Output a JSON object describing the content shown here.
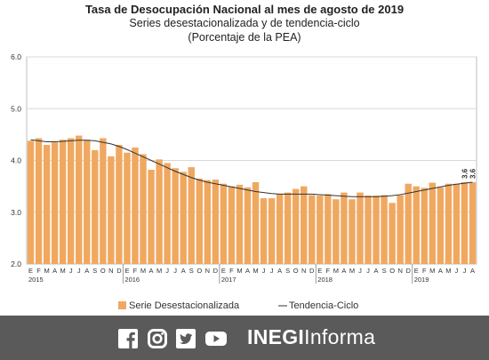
{
  "chart_data": {
    "type": "bar",
    "title": "Tasa de Desocupación Nacional al mes de agosto de 2019",
    "subtitle": "Series desestacionalizada y de tendencia-ciclo",
    "subtitle2": "(Porcentaje de la PEA)",
    "ylim": [
      2.0,
      6.0
    ],
    "yticks": [
      "2.0",
      "3.0",
      "4.0",
      "5.0",
      "6.0"
    ],
    "month_labels": [
      "E",
      "F",
      "M",
      "A",
      "M",
      "J",
      "J",
      "A",
      "S",
      "O",
      "N",
      "D",
      "E",
      "F",
      "M",
      "A",
      "M",
      "J",
      "J",
      "A",
      "S",
      "O",
      "N",
      "D",
      "E",
      "F",
      "M",
      "A",
      "M",
      "J",
      "J",
      "A",
      "S",
      "O",
      "N",
      "D",
      "E",
      "F",
      "M",
      "A",
      "M",
      "J",
      "J",
      "A",
      "S",
      "O",
      "N",
      "D",
      "E",
      "F",
      "M",
      "A",
      "M",
      "J",
      "J",
      "A"
    ],
    "year_labels": [
      "2015",
      "2016",
      "2017",
      "2018",
      "2019"
    ],
    "series": [
      {
        "name": "Serie Desestacionalizada",
        "color": "#f0a860",
        "values": [
          4.38,
          4.43,
          4.3,
          4.35,
          4.4,
          4.43,
          4.48,
          4.4,
          4.2,
          4.43,
          4.08,
          4.3,
          4.15,
          4.25,
          4.12,
          3.82,
          4.02,
          3.95,
          3.85,
          3.78,
          3.87,
          3.65,
          3.62,
          3.63,
          3.55,
          3.5,
          3.53,
          3.48,
          3.58,
          3.27,
          3.27,
          3.35,
          3.38,
          3.45,
          3.5,
          3.33,
          3.32,
          3.35,
          3.25,
          3.38,
          3.25,
          3.38,
          3.32,
          3.32,
          3.33,
          3.18,
          3.33,
          3.55,
          3.5,
          3.47,
          3.57,
          3.48,
          3.55,
          3.55,
          3.58,
          3.58
        ]
      },
      {
        "name": "Tendencia-Ciclo",
        "color": "#333333",
        "values": [
          4.4,
          4.38,
          4.36,
          4.36,
          4.37,
          4.38,
          4.39,
          4.39,
          4.38,
          4.35,
          4.32,
          4.27,
          4.21,
          4.14,
          4.07,
          4.0,
          3.93,
          3.86,
          3.79,
          3.73,
          3.67,
          3.62,
          3.58,
          3.55,
          3.52,
          3.49,
          3.46,
          3.43,
          3.4,
          3.38,
          3.36,
          3.35,
          3.35,
          3.35,
          3.35,
          3.35,
          3.34,
          3.33,
          3.32,
          3.31,
          3.3,
          3.3,
          3.3,
          3.3,
          3.31,
          3.32,
          3.34,
          3.37,
          3.4,
          3.43,
          3.46,
          3.49,
          3.52,
          3.54,
          3.56,
          3.58
        ]
      }
    ],
    "data_labels": [
      "3.6",
      "3.6"
    ],
    "legend_position": "bottom",
    "grid": true
  },
  "footer": {
    "background": "#5a5a5a",
    "brand_bold": "INEGI",
    "brand_light": "Informa",
    "icons": [
      "facebook-icon",
      "instagram-icon",
      "twitter-icon",
      "youtube-icon"
    ]
  }
}
